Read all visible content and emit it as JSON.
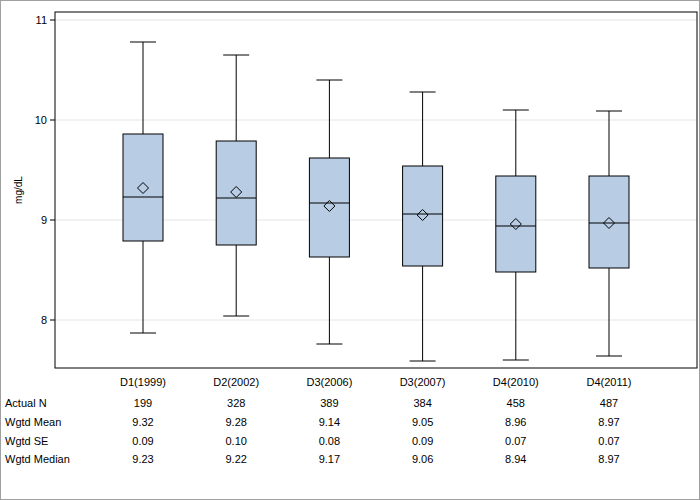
{
  "chart_data": {
    "type": "box",
    "y_label": "mg/dL",
    "categories": [
      "D1(1999)",
      "D2(2002)",
      "D3(2006)",
      "D3(2007)",
      "D4(2010)",
      "D4(2011)"
    ],
    "whisker_low": [
      7.87,
      8.04,
      7.76,
      7.59,
      7.6,
      7.64
    ],
    "q1": [
      8.79,
      8.75,
      8.63,
      8.54,
      8.48,
      8.52
    ],
    "median": [
      9.23,
      9.22,
      9.17,
      9.06,
      8.94,
      8.97
    ],
    "q3": [
      9.86,
      9.79,
      9.62,
      9.54,
      9.44,
      9.44
    ],
    "whisker_high": [
      10.78,
      10.65,
      10.4,
      10.28,
      10.1,
      10.09
    ],
    "mean": [
      9.32,
      9.28,
      9.14,
      9.05,
      8.96,
      8.97
    ],
    "color": "#b8cce4",
    "ylim": [
      7.52,
      11.08
    ],
    "yticks": [
      8,
      9,
      10,
      11
    ],
    "grid": true
  },
  "table": {
    "row_labels": [
      "Actual N",
      "Wgtd Mean",
      "Wgtd SE",
      "Wgtd Median"
    ],
    "rows": [
      [
        "199",
        "328",
        "389",
        "384",
        "458",
        "487"
      ],
      [
        "9.32",
        "9.28",
        "9.14",
        "9.05",
        "8.96",
        "8.97"
      ],
      [
        "0.09",
        "0.10",
        "0.08",
        "0.09",
        "0.07",
        "0.07"
      ],
      [
        "9.23",
        "9.22",
        "9.17",
        "9.06",
        "8.94",
        "8.97"
      ]
    ]
  }
}
